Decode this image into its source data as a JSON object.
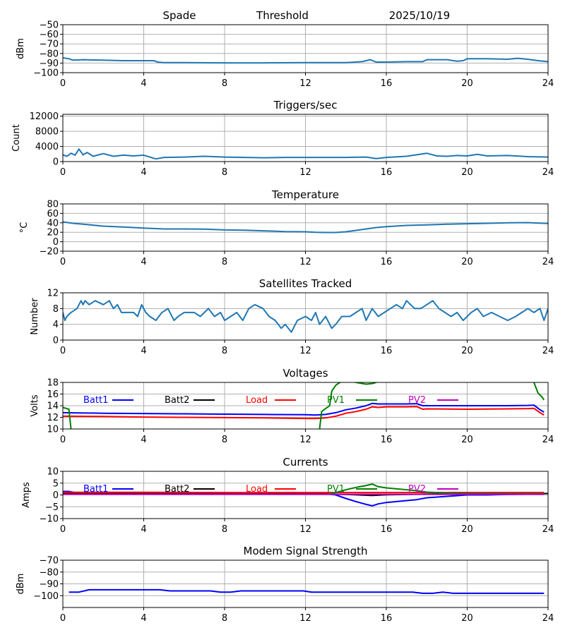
{
  "header": {
    "station": "Spade",
    "mode": "Threshold",
    "date": "2025/10/19"
  },
  "chart_data": [
    {
      "id": "signal",
      "type": "line",
      "title": "",
      "xlabel": "",
      "ylabel": "dBm",
      "xlim": [
        0,
        24
      ],
      "ylim": [
        -100,
        -50
      ],
      "xticks": [
        0,
        4,
        8,
        12,
        16,
        20,
        24
      ],
      "yticks": [
        -100,
        -90,
        -80,
        -70,
        -60,
        -50
      ],
      "ytick_labels": [
        "−100",
        "−90",
        "−80",
        "−70",
        "−60",
        "−50"
      ],
      "grid": true,
      "series": [
        {
          "name": "signal",
          "color": "#1f77b4",
          "x": [
            0,
            0.3,
            0.5,
            1,
            2,
            3,
            4,
            4.5,
            4.7,
            5,
            6,
            8,
            10,
            12,
            14,
            14.8,
            15.2,
            15.5,
            16,
            17,
            17.8,
            18,
            19,
            19.5,
            19.8,
            20,
            21,
            22,
            22.5,
            23,
            23.5,
            24
          ],
          "y": [
            -84.5,
            -85.5,
            -87,
            -86.5,
            -87,
            -87.5,
            -87.5,
            -87.5,
            -89,
            -89.5,
            -89.5,
            -89.8,
            -89.8,
            -89.5,
            -89.5,
            -88.5,
            -86.5,
            -89,
            -89,
            -88.5,
            -88.5,
            -86.5,
            -86.5,
            -88,
            -87.5,
            -85.5,
            -85.5,
            -86,
            -85,
            -86,
            -87.5,
            -88.5
          ]
        }
      ]
    },
    {
      "id": "triggers",
      "type": "line",
      "title": "Triggers/sec",
      "xlabel": "",
      "ylabel": "Count",
      "xlim": [
        0,
        24
      ],
      "ylim": [
        0,
        12500
      ],
      "xticks": [
        0,
        4,
        8,
        12,
        16,
        20,
        24
      ],
      "yticks": [
        0,
        4000,
        8000,
        12000
      ],
      "ytick_labels": [
        "0",
        "4000",
        "8000",
        "12000"
      ],
      "grid": true,
      "series": [
        {
          "name": "triggers",
          "color": "#1f77b4",
          "x": [
            0,
            0.2,
            0.4,
            0.6,
            0.8,
            1.0,
            1.2,
            1.5,
            2.0,
            2.5,
            3.0,
            3.5,
            4.0,
            4.3,
            4.6,
            5,
            6,
            7,
            8,
            9,
            10,
            11,
            12,
            13,
            14,
            15,
            15.5,
            16,
            17,
            17.5,
            18,
            18.5,
            19,
            19.5,
            20,
            20.5,
            21,
            22,
            23,
            24
          ],
          "y": [
            1800,
            1400,
            2200,
            1700,
            3300,
            1800,
            2400,
            1400,
            2100,
            1400,
            1700,
            1500,
            1700,
            1200,
            700,
            1100,
            1200,
            1400,
            1200,
            1100,
            1000,
            1100,
            1100,
            1100,
            1100,
            1200,
            800,
            1100,
            1400,
            1800,
            2200,
            1500,
            1400,
            1600,
            1500,
            1900,
            1500,
            1600,
            1300,
            1200
          ]
        }
      ]
    },
    {
      "id": "temperature",
      "type": "line",
      "title": "Temperature",
      "xlabel": "",
      "ylabel": "°C",
      "xlim": [
        0,
        24
      ],
      "ylim": [
        -20,
        80
      ],
      "xticks": [
        0,
        4,
        8,
        12,
        16,
        20,
        24
      ],
      "yticks": [
        -20,
        0,
        20,
        40,
        60,
        80
      ],
      "ytick_labels": [
        "−20",
        "0",
        "20",
        "40",
        "60",
        "80"
      ],
      "grid": true,
      "series": [
        {
          "name": "temperature",
          "color": "#1f77b4",
          "x": [
            0,
            0.5,
            1,
            2,
            3,
            4,
            5,
            6,
            7,
            8,
            9,
            10,
            11,
            12,
            12.5,
            13,
            13.5,
            14,
            14.5,
            15,
            15.5,
            16,
            17,
            18,
            19,
            20,
            21,
            22,
            23,
            24
          ],
          "y": [
            42,
            39,
            37,
            33,
            31,
            29,
            27,
            27,
            26.5,
            25,
            24.5,
            23,
            21.5,
            21,
            20,
            19.5,
            19.5,
            21,
            24,
            27,
            30,
            32,
            34.5,
            35.5,
            37,
            38,
            39,
            40,
            40.5,
            38.5
          ]
        }
      ]
    },
    {
      "id": "satellites",
      "type": "line",
      "title": "Satellites Tracked",
      "xlabel": "",
      "ylabel": "Number",
      "xlim": [
        0,
        24
      ],
      "ylim": [
        0,
        12
      ],
      "xticks": [
        0,
        4,
        8,
        12,
        16,
        20,
        24
      ],
      "yticks": [
        0,
        4,
        8,
        12
      ],
      "ytick_labels": [
        "0",
        "4",
        "8",
        "12"
      ],
      "grid": true,
      "series": [
        {
          "name": "satellites",
          "color": "#1f77b4",
          "x": [
            0,
            0.1,
            0.2,
            0.4,
            0.7,
            0.9,
            1.0,
            1.1,
            1.3,
            1.6,
            2.0,
            2.3,
            2.5,
            2.7,
            2.9,
            3.2,
            3.5,
            3.7,
            3.9,
            4.1,
            4.3,
            4.6,
            4.9,
            5.2,
            5.5,
            5.7,
            6,
            6.5,
            6.8,
            7.2,
            7.5,
            7.8,
            8.0,
            8.3,
            8.6,
            8.9,
            9.2,
            9.5,
            9.9,
            10.2,
            10.5,
            10.8,
            11.0,
            11.3,
            11.6,
            12.0,
            12.3,
            12.5,
            12.7,
            13.0,
            13.3,
            13.5,
            13.8,
            14.2,
            14.5,
            14.8,
            15.0,
            15.3,
            15.6,
            15.9,
            16.2,
            16.5,
            16.8,
            17.0,
            17.4,
            17.7,
            18.0,
            18.3,
            18.6,
            18.9,
            19.2,
            19.5,
            19.8,
            20.2,
            20.5,
            20.8,
            21.2,
            21.6,
            22.0,
            22.4,
            22.7,
            23.0,
            23.3,
            23.6,
            23.8,
            24
          ],
          "y": [
            7,
            5,
            6,
            7,
            8,
            10,
            9,
            10,
            9,
            10,
            9,
            10,
            8,
            9,
            7,
            7,
            7,
            6,
            9,
            7,
            6,
            5,
            7,
            8,
            5,
            6,
            7,
            7,
            6,
            8,
            6,
            7,
            5,
            6,
            7,
            5,
            8,
            9,
            8,
            6,
            5,
            3,
            4,
            2,
            5,
            6,
            5,
            7,
            4,
            6,
            3,
            4,
            6,
            6,
            7,
            8,
            5,
            8,
            6,
            7,
            8,
            9,
            8,
            10,
            8,
            8,
            9,
            10,
            8,
            7,
            6,
            7,
            5,
            7,
            8,
            6,
            7,
            6,
            5,
            6,
            7,
            8,
            7,
            8,
            5,
            8
          ]
        }
      ]
    },
    {
      "id": "voltages",
      "type": "line",
      "title": "Voltages",
      "xlabel": "",
      "ylabel": "Volts",
      "xlim": [
        0,
        24
      ],
      "ylim": [
        10,
        18
      ],
      "xticks": [
        0,
        4,
        8,
        12,
        16,
        20,
        24
      ],
      "yticks": [
        10,
        12,
        14,
        16,
        18
      ],
      "ytick_labels": [
        "10",
        "12",
        "14",
        "16",
        "18"
      ],
      "grid": true,
      "legend": "inline-top",
      "series": [
        {
          "name": "Batt1",
          "color": "#0000ff",
          "x": [
            0,
            2,
            4,
            6,
            8,
            10,
            12,
            12.5,
            13,
            13.5,
            14,
            14.5,
            15,
            15.3,
            15.6,
            16,
            17,
            17.5,
            17.8,
            18,
            20,
            22,
            23,
            23.3,
            23.6,
            23.8
          ],
          "y": [
            12.8,
            12.7,
            12.65,
            12.6,
            12.55,
            12.5,
            12.45,
            12.4,
            12.5,
            12.8,
            13.3,
            13.6,
            14.0,
            14.4,
            14.3,
            14.3,
            14.3,
            14.35,
            14.0,
            14.0,
            14.0,
            14.0,
            14.05,
            14.1,
            13.3,
            12.9
          ]
        },
        {
          "name": "Batt2",
          "color": "#000000",
          "x": [],
          "y": []
        },
        {
          "name": "Load",
          "color": "#ff0000",
          "x": [
            0,
            2,
            4,
            6,
            8,
            10,
            12,
            12.5,
            13,
            13.5,
            14,
            14.5,
            15,
            15.3,
            15.6,
            16,
            17,
            17.5,
            17.8,
            18,
            20,
            22,
            23,
            23.3,
            23.6,
            23.8
          ],
          "y": [
            12.2,
            12.15,
            12.05,
            12.0,
            11.95,
            11.9,
            11.8,
            11.8,
            11.9,
            12.2,
            12.7,
            13.0,
            13.4,
            13.8,
            13.7,
            13.8,
            13.8,
            13.85,
            13.4,
            13.45,
            13.4,
            13.45,
            13.5,
            13.55,
            12.8,
            12.4
          ]
        },
        {
          "name": "PV1",
          "color": "#008000",
          "x": [
            0,
            0.3,
            0.4,
            null,
            12.7,
            12.8,
            13.0,
            13.2,
            13.3,
            13.5,
            13.7,
            14.0,
            14.5,
            15.0,
            15.3,
            15.5,
            null,
            23.3,
            23.5,
            23.7,
            23.8
          ],
          "y": [
            13.7,
            13.4,
            10.0,
            null,
            10.0,
            13.0,
            13.5,
            14.0,
            16.5,
            17.5,
            18.0,
            18.3,
            18.0,
            17.7,
            17.8,
            18.0,
            null,
            18.0,
            16.2,
            15.5,
            15.0
          ]
        },
        {
          "name": "PV2",
          "color": "#bf00bf",
          "x": [],
          "y": []
        }
      ]
    },
    {
      "id": "currents",
      "type": "line",
      "title": "Currents",
      "xlabel": "",
      "ylabel": "Amps",
      "xlim": [
        0,
        24
      ],
      "ylim": [
        -10,
        10
      ],
      "xticks": [
        0,
        4,
        8,
        12,
        16,
        20,
        24
      ],
      "yticks": [
        -10,
        -5,
        0,
        5,
        10
      ],
      "ytick_labels": [
        "−10",
        "−5",
        "0",
        "5",
        "10"
      ],
      "grid": true,
      "legend": "inline-top",
      "series": [
        {
          "name": "Batt1",
          "color": "#0000ff",
          "x": [
            0,
            0.3,
            0.6,
            2,
            4,
            8,
            12,
            13,
            13.5,
            14,
            14.5,
            15.0,
            15.3,
            15.6,
            16,
            16.5,
            17,
            17.5,
            18,
            19,
            20,
            21,
            22,
            23,
            23.8
          ],
          "y": [
            1.5,
            1.5,
            1.0,
            1.0,
            1.0,
            0.8,
            0.8,
            0.5,
            0.0,
            -1.5,
            -2.8,
            -4.0,
            -4.6,
            -3.8,
            -3.2,
            -2.8,
            -2.4,
            -2.0,
            -1.2,
            -0.6,
            0.0,
            0.0,
            0.2,
            0.3,
            0.4
          ]
        },
        {
          "name": "Batt2",
          "color": "#000000",
          "x": [
            0,
            12,
            14,
            15.3,
            16,
            18,
            20,
            24
          ],
          "y": [
            0.6,
            0.6,
            0.2,
            -0.2,
            0.1,
            0.4,
            0.6,
            0.6
          ]
        },
        {
          "name": "Load",
          "color": "#ff0000",
          "x": [
            0,
            2,
            4,
            8,
            12,
            16,
            20,
            23.8
          ],
          "y": [
            1.1,
            1.1,
            1.1,
            1.0,
            1.0,
            1.0,
            1.0,
            1.0
          ]
        },
        {
          "name": "PV1",
          "color": "#008000",
          "x": [
            13.0,
            13.5,
            14.0,
            14.5,
            15.0,
            15.3,
            15.6,
            16,
            17,
            17.5,
            18,
            19,
            20,
            23.8
          ],
          "y": [
            0.2,
            1.0,
            2.2,
            3.2,
            4.0,
            4.6,
            3.5,
            3.0,
            2.2,
            1.8,
            1.2,
            0.8,
            0.6,
            0.5
          ]
        },
        {
          "name": "PV2",
          "color": "#bf00bf",
          "x": [
            0,
            4,
            8,
            12,
            16,
            20,
            23.8
          ],
          "y": [
            0.3,
            0.3,
            0.3,
            0.3,
            0.3,
            0.3,
            0.3
          ]
        }
      ]
    },
    {
      "id": "modem",
      "type": "line",
      "title": "Modem Signal Strength",
      "xlabel": "",
      "ylabel": "dBm",
      "xlim": [
        0,
        24
      ],
      "ylim": [
        -110,
        -70
      ],
      "xticks": [
        0,
        4,
        8,
        12,
        16,
        20,
        24
      ],
      "yticks": [
        -100,
        -90,
        -80,
        -70
      ],
      "ytick_labels": [
        "−100",
        "−90",
        "−80",
        "−70"
      ],
      "grid": true,
      "series": [
        {
          "name": "modem",
          "color": "#0000ff",
          "x": [
            0.3,
            0.8,
            1.3,
            2,
            3,
            4,
            4.8,
            5.3,
            6,
            7,
            7.3,
            7.8,
            8.3,
            8.8,
            9,
            10,
            11,
            11.9,
            12.3,
            13,
            14,
            15,
            16,
            17,
            17.3,
            17.8,
            18.3,
            18.8,
            19.3,
            20,
            21,
            22,
            23,
            23.8
          ],
          "y": [
            -97,
            -97,
            -95,
            -95,
            -95,
            -95,
            -95,
            -96,
            -96,
            -96,
            -96,
            -97,
            -97,
            -96,
            -96,
            -96,
            -96,
            -96,
            -97,
            -97,
            -97,
            -97,
            -97,
            -97,
            -97,
            -98,
            -98,
            -97,
            -98,
            -98,
            -98,
            -98,
            -98,
            -98
          ]
        }
      ]
    }
  ]
}
